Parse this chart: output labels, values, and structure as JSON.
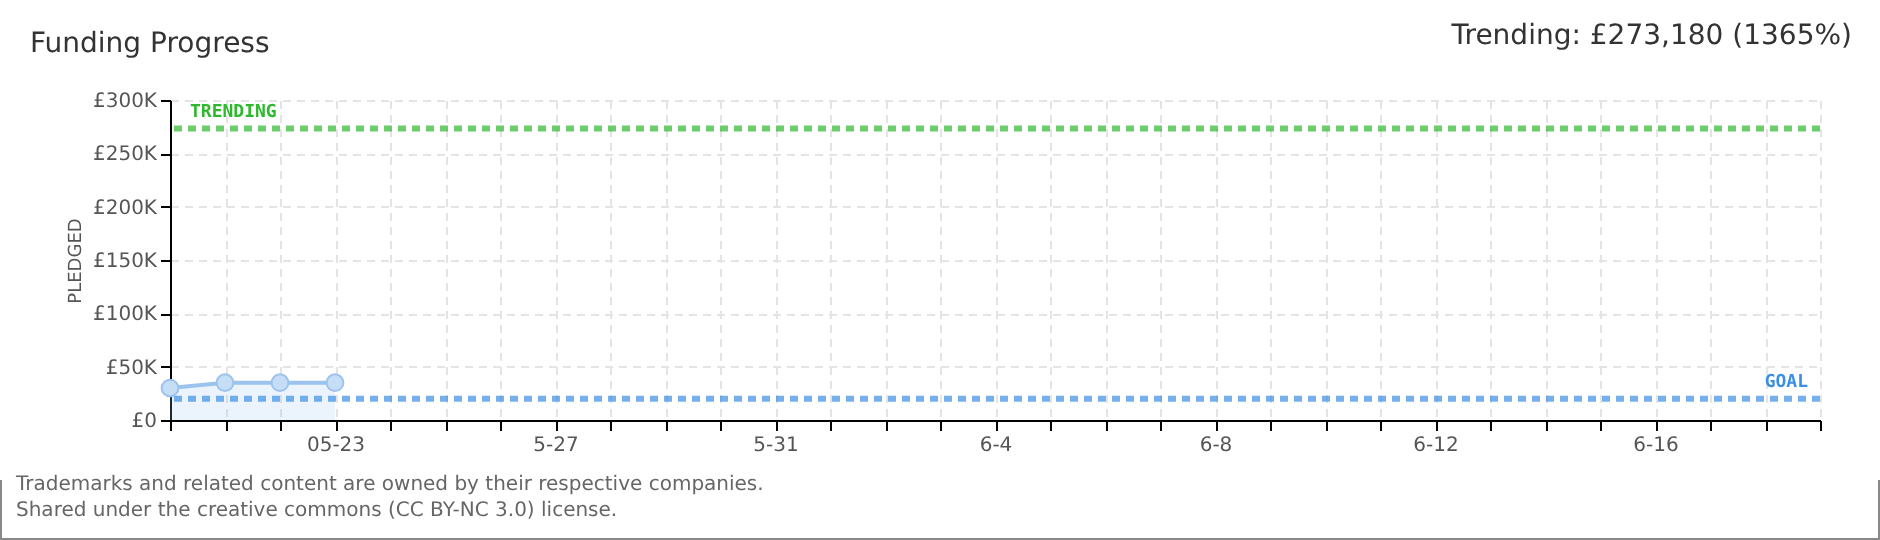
{
  "chart_data": {
    "type": "area",
    "title": "Funding Progress",
    "subtitle": "Trending: £273,180 (1365%)",
    "ylabel": "PLEDGED",
    "categories": [
      null,
      null,
      null,
      "05-23",
      null,
      null,
      null,
      "5-27",
      null,
      null,
      null,
      "5-31",
      null,
      null,
      null,
      "6-4",
      null,
      null,
      null,
      "6-8",
      null,
      null,
      null,
      "6-12",
      null,
      null,
      null,
      "6-16",
      null,
      null,
      null
    ],
    "series": [
      {
        "color": "#9cc3ee",
        "values": [
          30000,
          35000,
          35000,
          35000,
          null,
          null,
          null,
          null,
          null,
          null,
          null,
          null,
          null,
          null,
          null,
          null,
          null,
          null,
          null,
          null,
          null,
          null,
          null,
          null,
          null,
          null,
          null,
          null,
          null,
          null,
          null
        ]
      }
    ],
    "ylim": [
      0,
      300000
    ],
    "yticks": [
      {
        "value": 0,
        "label": "£0"
      },
      {
        "value": 50000,
        "label": "£50K"
      },
      {
        "value": 100000,
        "label": "£100K"
      },
      {
        "value": 150000,
        "label": "£150K"
      },
      {
        "value": 200000,
        "label": "£200K"
      },
      {
        "value": 250000,
        "label": "£250K"
      },
      {
        "value": 300000,
        "label": "£300K"
      }
    ],
    "ref_lines": [
      {
        "axis": "y",
        "value": 273180,
        "label": "TRENDING",
        "color": "#2eb82e",
        "line_style": "dashed"
      },
      {
        "axis": "y",
        "value": 20000,
        "label": "GOAL",
        "color": "#3a8ee6",
        "line_style": "dashed"
      }
    ],
    "grid": true,
    "marker": "circle",
    "annotations": [
      "Trademarks and related content are owned by their respective companies.",
      "Shared under the creative commons (CC BY-NC 3.0) license."
    ]
  }
}
